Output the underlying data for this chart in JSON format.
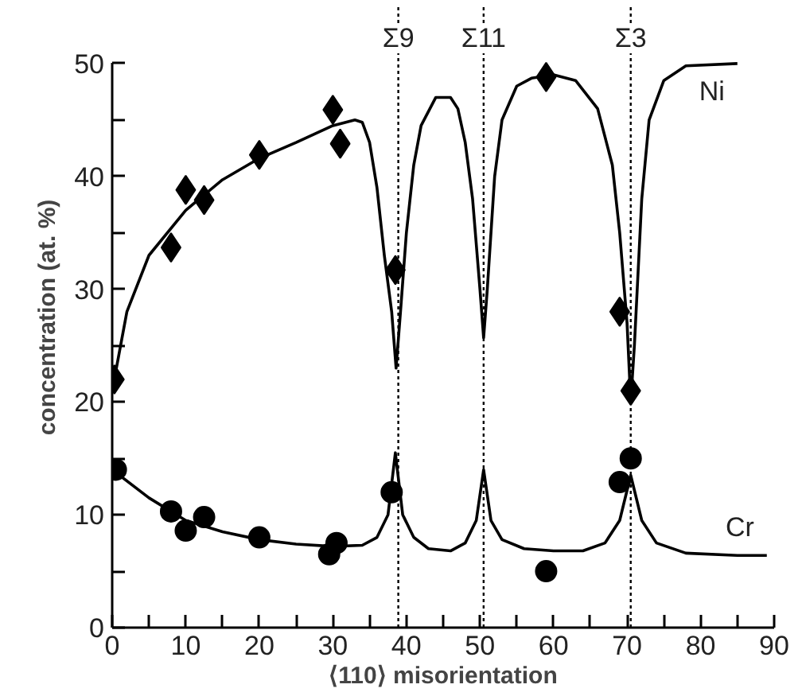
{
  "chart_data": {
    "type": "line",
    "xlabel": "⟨110⟩ misorientation",
    "ylabel": "concentration (at. %)",
    "xlim": [
      0,
      90
    ],
    "ylim": [
      0,
      50
    ],
    "xticks": [
      0,
      {
        "value": 5,
        "label": null
      },
      10,
      {
        "value": 15,
        "label": null
      },
      20,
      {
        "value": 25,
        "label": null
      },
      30,
      {
        "value": 35,
        "label": null
      },
      40,
      {
        "value": 45,
        "label": null
      },
      50,
      {
        "value": 55,
        "label": null
      },
      60,
      {
        "value": 65,
        "label": null
      },
      70,
      {
        "value": 75,
        "label": null
      },
      80,
      {
        "value": 85,
        "label": null
      },
      90
    ],
    "yticks": [
      0,
      {
        "value": 5,
        "label": null
      },
      10,
      {
        "value": 15,
        "label": null
      },
      20,
      {
        "value": 25,
        "label": null
      },
      30,
      {
        "value": 35,
        "label": null
      },
      40,
      {
        "value": 45,
        "label": null
      },
      50
    ],
    "grid": false,
    "series": [
      {
        "name": "Ni",
        "color": "#000000",
        "x": [
          0,
          2,
          5,
          10,
          15,
          20,
          25,
          30,
          33,
          34,
          35,
          36,
          37,
          38,
          38.6,
          39.2,
          40,
          41,
          42,
          44,
          46,
          47,
          48,
          49,
          50,
          50.5,
          51,
          52,
          53,
          55,
          57,
          60,
          63,
          66,
          68,
          69,
          70,
          70.5,
          71,
          72,
          73,
          75,
          78,
          85
        ],
        "values": [
          21,
          28,
          33,
          37,
          39.7,
          41.6,
          43,
          44.5,
          45,
          44.8,
          43,
          39,
          33,
          28,
          23,
          28,
          35,
          41,
          44.5,
          47,
          47,
          46,
          43,
          38,
          30,
          25.7,
          30,
          40,
          45,
          48,
          48.7,
          49,
          48.5,
          46,
          41,
          35,
          27,
          20,
          25,
          38,
          45,
          48.5,
          49.8,
          50
        ]
      },
      {
        "name": "Cr",
        "color": "#000000",
        "x": [
          0,
          5,
          10,
          15,
          20,
          25,
          30,
          34,
          36,
          37.5,
          38.5,
          39.5,
          41,
          43,
          46,
          48,
          49.5,
          50.5,
          51.5,
          53,
          56,
          60,
          64,
          67,
          69,
          70.5,
          72,
          74,
          78,
          85,
          89
        ],
        "values": [
          14,
          11.5,
          9.5,
          8.5,
          7.8,
          7.4,
          7.2,
          7.3,
          8,
          10,
          15.5,
          10,
          8,
          7,
          6.8,
          7.5,
          9.5,
          14,
          9.5,
          7.8,
          7,
          6.8,
          6.8,
          7.5,
          9.5,
          13.5,
          9.5,
          7.5,
          6.6,
          6.4,
          6.4
        ]
      },
      {
        "type": "scatter",
        "marker": "diamond",
        "color": "#000000",
        "x": [
          0.3,
          8,
          10,
          12.5,
          20,
          30,
          31,
          38.5,
          59,
          69,
          70.5
        ],
        "values": [
          22,
          33.7,
          38.8,
          37.9,
          41.9,
          45.9,
          42.9,
          31.7,
          48.8,
          28,
          21
        ]
      },
      {
        "type": "scatter",
        "marker": "circle",
        "color": "#000000",
        "x": [
          0.5,
          8,
          10,
          12.5,
          20,
          29.5,
          30.5,
          38,
          59,
          69,
          70.5
        ],
        "values": [
          14,
          10.3,
          8.6,
          9.8,
          8,
          6.5,
          7.5,
          12,
          5,
          12.9,
          15
        ]
      }
    ],
    "ref_lines": [
      {
        "axis": "x",
        "value": 38.9,
        "label": "Σ9",
        "line_style": "dotted"
      },
      {
        "axis": "x",
        "value": 50.5,
        "label": "Σ11",
        "line_style": "dotted"
      },
      {
        "axis": "x",
        "value": 70.5,
        "label": "Σ3",
        "line_style": "dotted"
      }
    ]
  }
}
